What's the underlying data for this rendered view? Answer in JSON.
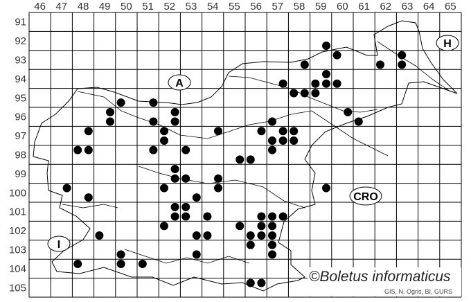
{
  "grid": {
    "columns": [
      "46",
      "47",
      "48",
      "49",
      "50",
      "51",
      "52",
      "53",
      "54",
      "55",
      "56",
      "57",
      "58",
      "59",
      "60",
      "61",
      "62",
      "63",
      "64",
      "65"
    ],
    "rows": [
      "91",
      "92",
      "93",
      "94",
      "95",
      "96",
      "97",
      "98",
      "99",
      "100",
      "101",
      "102",
      "103",
      "104",
      "105"
    ]
  },
  "country_labels": {
    "austria": "A",
    "hungary": "H",
    "croatia": "CRO",
    "italy": "I"
  },
  "copyright": "©Boletus informaticus",
  "credit": "GIS, N. Ogris, BI, GURS",
  "dot_color": "#000000",
  "records": [
    [
      "59",
      "92",
      "SE"
    ],
    [
      "60",
      "93",
      "NW"
    ],
    [
      "58",
      "93",
      "SE"
    ],
    [
      "62",
      "93",
      "SW"
    ],
    [
      "63",
      "93",
      "NW"
    ],
    [
      "63",
      "93",
      "SW"
    ],
    [
      "57",
      "94",
      "SE"
    ],
    [
      "59",
      "94",
      "NE"
    ],
    [
      "59",
      "94",
      "SW"
    ],
    [
      "59",
      "94",
      "SE"
    ],
    [
      "60",
      "94",
      "SW"
    ],
    [
      "58",
      "95",
      "NW"
    ],
    [
      "58",
      "95",
      "NE"
    ],
    [
      "59",
      "95",
      "NW"
    ],
    [
      "50",
      "95",
      "SW"
    ],
    [
      "51",
      "95",
      "SE"
    ],
    [
      "60",
      "96",
      "NE"
    ],
    [
      "61",
      "96",
      "SW"
    ],
    [
      "49",
      "96",
      "NE"
    ],
    [
      "49",
      "96",
      "SE"
    ],
    [
      "51",
      "96",
      "SE"
    ],
    [
      "52",
      "96",
      "NE"
    ],
    [
      "52",
      "96",
      "SE"
    ],
    [
      "57",
      "96",
      "SW"
    ],
    [
      "48",
      "97",
      "NE"
    ],
    [
      "52",
      "97",
      "NW"
    ],
    [
      "52",
      "97",
      "SW"
    ],
    [
      "54",
      "97",
      "NE"
    ],
    [
      "56",
      "97",
      "NE"
    ],
    [
      "57",
      "97",
      "NE"
    ],
    [
      "58",
      "97",
      "NW"
    ],
    [
      "57",
      "97",
      "SW"
    ],
    [
      "57",
      "97",
      "SE"
    ],
    [
      "58",
      "97",
      "SW"
    ],
    [
      "48",
      "98",
      "NW"
    ],
    [
      "48",
      "98",
      "NE"
    ],
    [
      "51",
      "98",
      "NE"
    ],
    [
      "53",
      "98",
      "NW"
    ],
    [
      "57",
      "98",
      "NW"
    ],
    [
      "55",
      "98",
      "SE"
    ],
    [
      "56",
      "98",
      "SW"
    ],
    [
      "52",
      "99",
      "NE"
    ],
    [
      "52",
      "99",
      "SE"
    ],
    [
      "53",
      "99",
      "SW"
    ],
    [
      "54",
      "99",
      "SE"
    ],
    [
      "54",
      "100",
      "NE"
    ],
    [
      "47",
      "100",
      "NE"
    ],
    [
      "52",
      "100",
      "NW"
    ],
    [
      "59",
      "100",
      "NE"
    ],
    [
      "48",
      "100",
      "SE"
    ],
    [
      "53",
      "100",
      "SE"
    ],
    [
      "52",
      "101",
      "NE"
    ],
    [
      "53",
      "101",
      "NW"
    ],
    [
      "52",
      "101",
      "SE"
    ],
    [
      "53",
      "101",
      "SW"
    ],
    [
      "54",
      "101",
      "SW"
    ],
    [
      "56",
      "101",
      "SE"
    ],
    [
      "57",
      "101",
      "SW"
    ],
    [
      "57",
      "101",
      "SE"
    ],
    [
      "52",
      "102",
      "NW"
    ],
    [
      "55",
      "102",
      "NE"
    ],
    [
      "56",
      "102",
      "NE"
    ],
    [
      "57",
      "102",
      "NW"
    ],
    [
      "49",
      "102",
      "SW"
    ],
    [
      "53",
      "102",
      "SE"
    ],
    [
      "54",
      "102",
      "SW"
    ],
    [
      "56",
      "102",
      "SW"
    ],
    [
      "56",
      "102",
      "SE"
    ],
    [
      "57",
      "102",
      "SW"
    ],
    [
      "56",
      "103",
      "NW"
    ],
    [
      "57",
      "103",
      "NW"
    ],
    [
      "53",
      "103",
      "SE"
    ],
    [
      "50",
      "103",
      "SW"
    ],
    [
      "57",
      "103",
      "SW"
    ],
    [
      "48",
      "104",
      "NW"
    ],
    [
      "50",
      "104",
      "NW"
    ],
    [
      "51",
      "104",
      "NW"
    ],
    [
      "56",
      "105",
      "NW"
    ],
    [
      "56",
      "105",
      "NE"
    ]
  ]
}
